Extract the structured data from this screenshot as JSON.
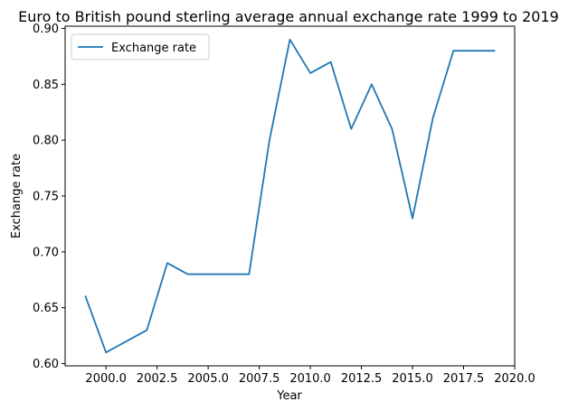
{
  "chart_data": {
    "type": "line",
    "title": "Euro to British pound sterling average annual exchange rate 1999 to 2019",
    "xlabel": "Year",
    "ylabel": "Exchange rate",
    "xlim": [
      1998.0,
      2020.0
    ],
    "ylim": [
      0.598,
      0.902
    ],
    "xticks": [
      2000.0,
      2002.5,
      2005.0,
      2007.5,
      2010.0,
      2012.5,
      2015.0,
      2017.5,
      2020.0
    ],
    "xtick_labels": [
      "2000.0",
      "2002.5",
      "2005.0",
      "2007.5",
      "2010.0",
      "2012.5",
      "2015.0",
      "2017.5",
      "2020.0"
    ],
    "yticks": [
      0.6,
      0.65,
      0.7,
      0.75,
      0.8,
      0.85,
      0.9
    ],
    "ytick_labels": [
      "0.60",
      "0.65",
      "0.70",
      "0.75",
      "0.80",
      "0.85",
      "0.90"
    ],
    "grid": false,
    "legend_position": "top-left",
    "series": [
      {
        "name": "Exchange rate",
        "color": "#1f77b4",
        "x": [
          1999,
          2000,
          2001,
          2002,
          2003,
          2004,
          2005,
          2006,
          2007,
          2008,
          2009,
          2010,
          2011,
          2012,
          2013,
          2014,
          2015,
          2016,
          2017,
          2018,
          2019
        ],
        "y": [
          0.66,
          0.61,
          0.62,
          0.63,
          0.69,
          0.68,
          0.68,
          0.68,
          0.68,
          0.8,
          0.89,
          0.86,
          0.87,
          0.81,
          0.85,
          0.81,
          0.73,
          0.82,
          0.88,
          0.88,
          0.88
        ]
      }
    ]
  }
}
